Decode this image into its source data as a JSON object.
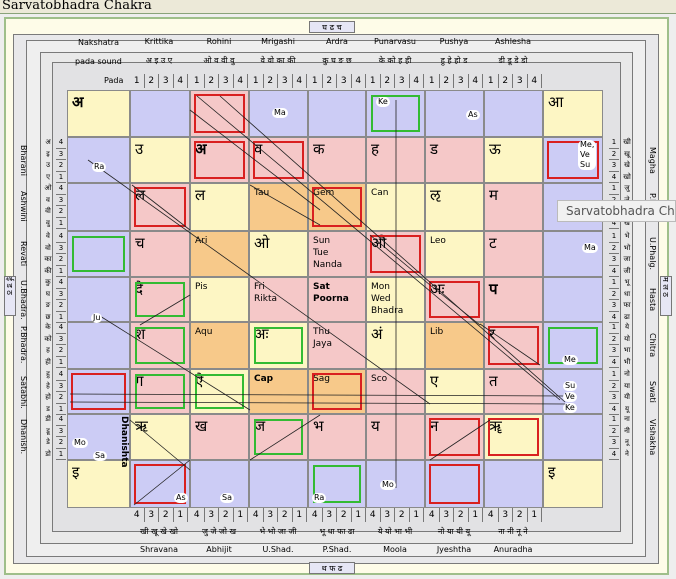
{
  "title": "Sarvatobhadra Chakra",
  "tooltip": "Sarvatobhadra Chakra",
  "header": {
    "top_tag": "घ ढ च",
    "bottom_tag": "थ फ ढ",
    "left_tag": "ई ड ठ",
    "right_tag": "म ल ठ",
    "nakshatra_label": "Nakshatra",
    "pada_sound_label": "pada sound",
    "pada_label": "Pada",
    "top_nakshatras": [
      "Krittika",
      "Rohini",
      "Mrigashi",
      "Ardra",
      "Punarvasu",
      "Pushya",
      "Ashlesha"
    ],
    "top_sounds": [
      "अ इ उ ए",
      "ओ व वी वु",
      "वे वो का की",
      "कु घ ङ छ",
      "के को ह ही",
      "हु हे हो ड",
      "डी डू डे डो"
    ],
    "bottom_nakshatras": [
      "Shravana",
      "Abhijit",
      "U.Shad.",
      "P.Shad.",
      "Moola",
      "Jyeshtha",
      "Anuradha"
    ],
    "bottom_sounds": [
      "खी खू खे खो",
      "जु जे जो ख",
      "भे भो जा जी",
      "भू धा फा ढा",
      "ये यो भा भी",
      "नो या यी यू",
      "ना नी नू ने"
    ],
    "left_nakshatras": [
      "Bharani",
      "Ashwini",
      "Revati",
      "U.Bhadra.",
      "P.Bhadra.",
      "Satabhi.",
      "Dhanish."
    ],
    "right_nakshatras": [
      "Magha",
      "P.Phal.",
      "U.Phalg.",
      "Hasta",
      "Chitra",
      "Swati",
      "Vishakha"
    ],
    "pada_numbers": [
      "1",
      "2",
      "3",
      "4"
    ],
    "pada_numbers_rev": [
      "4",
      "3",
      "2",
      "1"
    ],
    "dhanishta_vertical": "Dhanishta"
  },
  "grid": [
    [
      "अ",
      "",
      "",
      "",
      "",
      "",
      "आ"
    ],
    [
      "उ",
      "अ",
      "व",
      "क",
      "ह",
      "ड",
      "ऊ"
    ],
    [
      "ल",
      "ल",
      "Tau",
      "Gem",
      "Can",
      "ऌ",
      "म"
    ],
    [
      "च",
      "Ari",
      "ओ",
      "Sun\nTue\nNanda",
      "औ",
      "Leo",
      "ट"
    ],
    [
      "दे",
      "Pis",
      "Fri\nRikta",
      "Sat\nPoorna",
      "Mon\nWed\nBhadra",
      "अः",
      "प"
    ],
    [
      "श",
      "Aqu",
      "अः",
      "Thu\nJaya",
      "अं",
      "Lib",
      "र"
    ],
    [
      "ग",
      "ऐ",
      "Cap",
      "Sag",
      "Sco",
      "ए",
      "त"
    ],
    [
      "ऋ",
      "ख",
      "ज",
      "भ",
      "य",
      "न",
      "ॠ"
    ],
    [
      "इ",
      "",
      "",
      "",
      "",
      "",
      "इ"
    ]
  ],
  "planets": {
    "Ke": "Ke",
    "As": "As",
    "Ma1": "Ma",
    "Ra": "Ra",
    "Me1": "Me,\nVe\nSu",
    "Ma2": "Ma",
    "Ju": "Ju",
    "Me2": "Me",
    "Su": "Su",
    "Ve": "Ve",
    "Ke2": "Ke",
    "Mo": "Mo",
    "Sa": "Sa",
    "As2": "As",
    "Sa2": "Sa",
    "Ra2": "Ra",
    "Mo2": "Mo"
  },
  "colors": {
    "lavender": "#ccccf5",
    "pink": "#f5c8c8",
    "orange": "#f7c98a",
    "yellow": "#fdf6c4",
    "red": "#d92020",
    "green": "#33bb33"
  }
}
